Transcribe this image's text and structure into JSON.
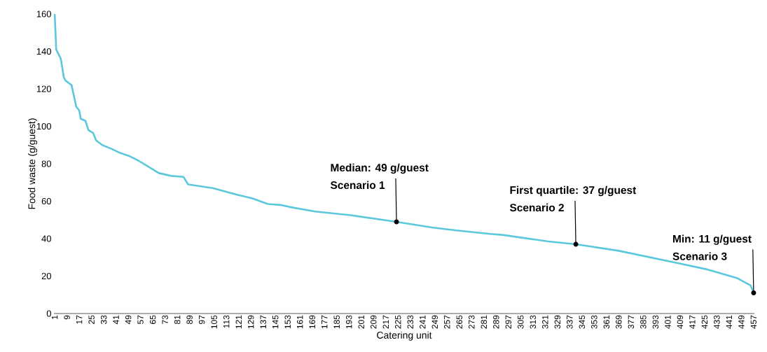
{
  "chart_data": {
    "type": "line",
    "xlabel": "Catering unit",
    "ylabel": "Food waste (g/guest)",
    "x": [
      1,
      2,
      5,
      7,
      8,
      12,
      14,
      15,
      17,
      18,
      21,
      23,
      26,
      28,
      32,
      38,
      43,
      50,
      56,
      63,
      69,
      77,
      85,
      88,
      100,
      104,
      120,
      130,
      140,
      148,
      157,
      171,
      194,
      224,
      247,
      262,
      285,
      293,
      323,
      341,
      369,
      407,
      427,
      446,
      455,
      457
    ],
    "values": [
      160,
      141,
      136,
      126,
      124.5,
      122,
      114.5,
      110.5,
      108.5,
      104,
      103,
      98,
      96.5,
      92.5,
      90,
      88,
      86,
      84,
      81.5,
      78,
      75,
      73.5,
      73,
      69,
      67.5,
      67,
      63.5,
      61.5,
      58.5,
      58,
      56.5,
      54.5,
      52.5,
      49,
      46,
      44.5,
      42.5,
      42,
      38.5,
      37,
      33.5,
      27,
      23.5,
      19,
      15,
      11
    ],
    "color": "#5bc8dc",
    "xlim": [
      0.5,
      457.5
    ],
    "xticks": [
      1,
      9,
      17,
      25,
      33,
      41,
      49,
      57,
      65,
      73,
      81,
      89,
      97,
      105,
      113,
      121,
      129,
      137,
      145,
      153,
      161,
      169,
      177,
      185,
      193,
      201,
      209,
      217,
      225,
      233,
      241,
      249,
      257,
      265,
      273,
      281,
      289,
      297,
      305,
      313,
      321,
      329,
      337,
      345,
      353,
      361,
      369,
      377,
      385,
      393,
      401,
      409,
      417,
      425,
      433,
      441,
      449,
      457
    ],
    "ylim": [
      0,
      160
    ],
    "yticks": [
      0,
      20,
      40,
      60,
      80,
      100,
      120,
      140,
      160
    ],
    "grid": false,
    "annotations": [
      {
        "text": "Median: 49 g/guest",
        "x": 224,
        "y": 49
      },
      "Scenario 1",
      {
        "text": "First quartile: 37 g/guest",
        "x": 341,
        "y": 37
      },
      "Scenario 2",
      {
        "text": "Min: 11 g/guest",
        "x": 457,
        "y": 11
      },
      "Scenario 3"
    ]
  }
}
